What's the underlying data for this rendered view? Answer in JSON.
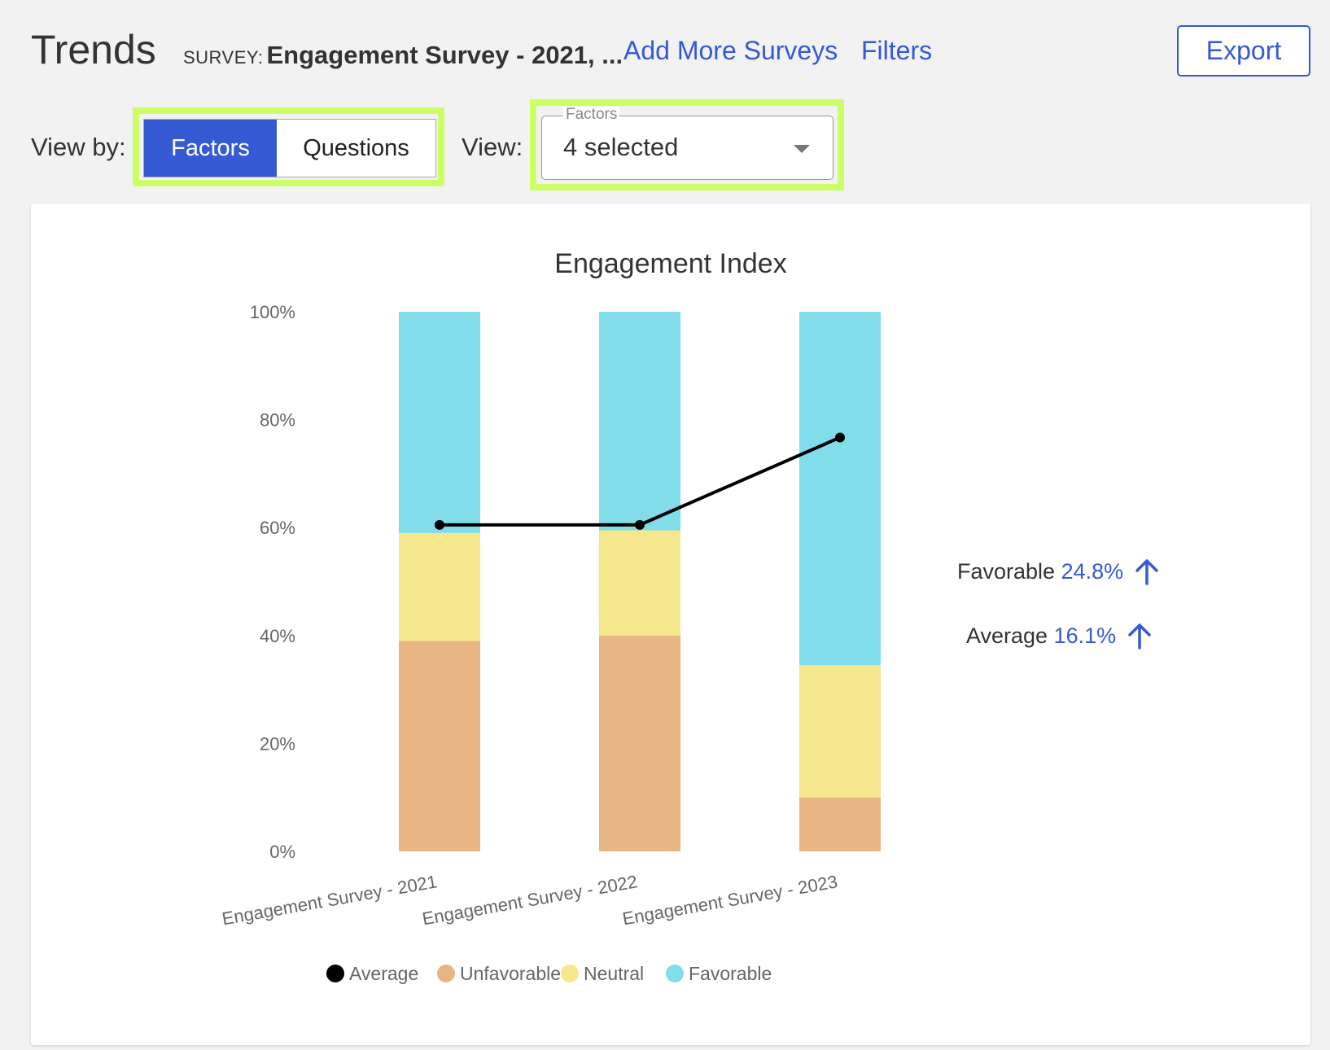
{
  "header": {
    "title": "Trends",
    "survey_caption": "SURVEY:",
    "survey_name": "Engagement Survey - 2021, ...",
    "add_surveys_label": "Add More Surveys",
    "filters_label": "Filters",
    "export_label": "Export"
  },
  "controls": {
    "view_by_label": "View by:",
    "view_by_options": [
      "Factors",
      "Questions"
    ],
    "view_by_selected": "Factors",
    "view_label": "View:",
    "factors_select": {
      "legend": "Factors",
      "value": "4 selected"
    }
  },
  "summary": {
    "favorable_label": "Favorable",
    "favorable_value": "24.8%",
    "favorable_icon": "arrow-up-icon",
    "average_label": "Average",
    "average_value": "16.1%",
    "average_icon": "arrow-up-icon"
  },
  "colors": {
    "accent": "#3659d4",
    "highlight": "#ccff66",
    "unfavorable": "#e8b585",
    "neutral": "#f4e78c",
    "favorable": "#80dde9",
    "average": "#000000"
  },
  "chart_data": {
    "type": "bar",
    "stacked": true,
    "title": "Engagement Index",
    "categories": [
      "Engagement Survey - 2021",
      "Engagement Survey - 2022",
      "Engagement Survey - 2023"
    ],
    "series": [
      {
        "name": "Unfavorable",
        "values": [
          39,
          40,
          10
        ]
      },
      {
        "name": "Neutral",
        "values": [
          20,
          19.5,
          24.5
        ]
      },
      {
        "name": "Favorable",
        "values": [
          41,
          40.5,
          65.5
        ]
      }
    ],
    "line_series": {
      "name": "Average",
      "values": [
        60.5,
        60.5,
        76.7
      ]
    },
    "ylim": [
      0,
      100
    ],
    "yticks": [
      "0%",
      "20%",
      "40%",
      "60%",
      "80%",
      "100%"
    ],
    "legend": [
      "Average",
      "Unfavorable",
      "Neutral",
      "Favorable"
    ],
    "legend_position": "bottom",
    "grid": false
  }
}
